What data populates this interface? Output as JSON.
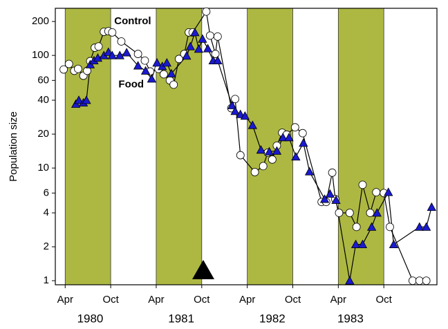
{
  "chart_data": {
    "type": "line",
    "y_label": "Population size",
    "log_y": true,
    "grid": false,
    "xlim": [
      1.7,
      52
    ],
    "ylim": [
      0.92,
      262
    ],
    "yticks": [
      1,
      2,
      4,
      6,
      10,
      20,
      40,
      60,
      100,
      200
    ],
    "xticks": [
      {
        "value": 3,
        "label": "Apr"
      },
      {
        "value": 9,
        "label": "Oct"
      },
      {
        "value": 15,
        "label": "Apr"
      },
      {
        "value": 21,
        "label": "Oct"
      },
      {
        "value": 27,
        "label": "Apr"
      },
      {
        "value": 33,
        "label": "Oct"
      },
      {
        "value": 39,
        "label": "Apr"
      },
      {
        "value": 45,
        "label": "Oct"
      }
    ],
    "year_ticks": [
      {
        "value": 6.3,
        "label": "1980"
      },
      {
        "value": 18.3,
        "label": "1981"
      },
      {
        "value": 30.3,
        "label": "1982"
      },
      {
        "value": 40.6,
        "label": "1983"
      }
    ],
    "shaded_periods": [
      [
        3,
        9
      ],
      [
        15,
        21
      ],
      [
        27,
        33
      ],
      [
        39,
        45
      ]
    ],
    "shade_color": "#adb843",
    "event_marker_x": 21.2,
    "annotations": [
      {
        "text": "Control",
        "x": 11.9,
        "y": 200
      },
      {
        "text": "Food",
        "x": 11.7,
        "y": 55
      }
    ],
    "series": [
      {
        "name": "Control",
        "color": "#ffffff",
        "marker": "circle",
        "x": [
          2.8,
          3.5,
          4.2,
          4.7,
          5.4,
          5.9,
          6.3,
          6.9,
          7.4,
          8.1,
          8.7,
          9.2,
          10.4,
          12.6,
          13.5,
          14.2,
          15.3,
          16.0,
          16.8,
          17.3,
          18.0,
          18.7,
          19.3,
          19.8,
          21.6,
          22.1,
          22.8,
          23.1,
          24.9,
          25.4,
          26.1,
          28.0,
          29.1,
          29.7,
          30.3,
          30.9,
          31.6,
          32.2,
          33.3,
          34.3,
          36.8,
          37.4,
          38.2,
          38.6,
          39.1,
          40.5,
          41.4,
          42.2,
          43.2,
          44.0,
          45.0,
          45.8,
          48.8,
          49.7,
          50.6
        ],
        "values": [
          75,
          84,
          73,
          76,
          66,
          73,
          89,
          117,
          120,
          162,
          164,
          160,
          133,
          103,
          90,
          72,
          76,
          68,
          60,
          55,
          93,
          103,
          160,
          160,
          245,
          150,
          103,
          147,
          34,
          41,
          13,
          9.2,
          10.4,
          13.7,
          11.9,
          15.8,
          20.6,
          19.8,
          23,
          20.4,
          5.0,
          5.0,
          9.1,
          5.3,
          4.0,
          4.0,
          3.0,
          7.1,
          4.0,
          6.1,
          6.0,
          3.0,
          1,
          1,
          1
        ]
      },
      {
        "name": "Food",
        "color": "#1a1ad0",
        "marker": "triangle",
        "x": [
          4.4,
          4.8,
          5.4,
          5.8,
          6.3,
          6.8,
          7.3,
          8.1,
          8.7,
          9.2,
          10.2,
          11.1,
          12.6,
          13.6,
          14.4,
          15.1,
          15.8,
          16.4,
          17.0,
          19.0,
          19.5,
          20.1,
          20.6,
          21.1,
          21.8,
          22.5,
          23.1,
          25.0,
          25.4,
          26.1,
          26.7,
          27.7,
          28.8,
          29.9,
          30.9,
          31.7,
          32.5,
          33.4,
          34.4,
          35.2,
          37.2,
          37.9,
          38.7,
          40.5,
          41.3,
          42.2,
          43.4,
          44.1,
          45.6,
          46.3,
          49.7,
          50.6,
          51.3
        ],
        "values": [
          37,
          40,
          38,
          40,
          83,
          90,
          95,
          100,
          107,
          100,
          100,
          106,
          81,
          73,
          62,
          86,
          80,
          86,
          69,
          99,
          120,
          160,
          114,
          140,
          115,
          90,
          90,
          36,
          32,
          30,
          29,
          24,
          14.5,
          14,
          14.2,
          18.7,
          18.7,
          12.6,
          16.7,
          9.3,
          5.3,
          5.9,
          5.2,
          1,
          2.1,
          2.1,
          3.0,
          4.0,
          6.1,
          2.1,
          3.0,
          3.0,
          4.5
        ]
      }
    ]
  }
}
